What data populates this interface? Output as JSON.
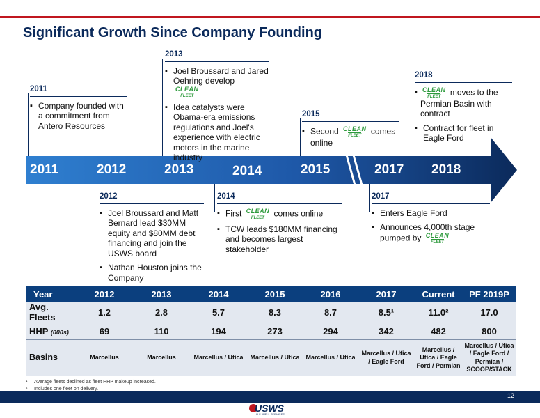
{
  "title": "Significant Growth Since Company Founding",
  "logo_text": {
    "line1": "CLEAN",
    "line2": "FLEET"
  },
  "timeline": {
    "arrow_years": [
      "2011",
      "2012",
      "2013",
      "2014",
      "2015",
      "2017",
      "2018"
    ],
    "above": [
      {
        "year": "2011",
        "bullets": [
          {
            "text": "Company founded with a commitment from Antero Resources"
          }
        ]
      },
      {
        "year": "2013",
        "bullets": [
          {
            "text": "Joel Broussard and Jared Oehring develop"
          },
          {
            "text": "Idea catalysts were Obama-era emissions regulations and Joel's experience with electric motors in the marine industry"
          }
        ]
      },
      {
        "year": "2015",
        "bullets": [
          {
            "pre": "Second",
            "post": "comes online"
          }
        ]
      },
      {
        "year": "2018",
        "bullets": [
          {
            "pre": "",
            "post": "moves to the Permian Basin with contract"
          },
          {
            "text": "Contract for fleet in Eagle Ford"
          }
        ]
      }
    ],
    "below": [
      {
        "year": "2012",
        "bullets": [
          {
            "text": "Joel Broussard and Matt Bernard lead $30MM equity and $80MM debt financing and join the USWS board"
          },
          {
            "text": "Nathan Houston joins the Company"
          }
        ]
      },
      {
        "year": "2014",
        "bullets": [
          {
            "pre": "First",
            "post": "comes online"
          },
          {
            "text": "TCW leads $180MM financing and becomes largest stakeholder"
          }
        ]
      },
      {
        "year": "2017",
        "bullets": [
          {
            "text": "Enters Eagle Ford"
          },
          {
            "pre": "Announces 4,000th stage pumped by",
            "post": ""
          }
        ]
      }
    ]
  },
  "table": {
    "header": [
      "Year",
      "2012",
      "2013",
      "2014",
      "2015",
      "2016",
      "2017",
      "Current",
      "PF 2019P"
    ],
    "fleets": {
      "label": "Avg. Fleets",
      "values": [
        "1.2",
        "2.8",
        "5.7",
        "8.3",
        "8.7",
        "8.5¹",
        "11.0²",
        "17.0"
      ]
    },
    "hhp": {
      "label": "HHP",
      "unit": "(000s)",
      "values": [
        "69",
        "110",
        "194",
        "273",
        "294",
        "342",
        "482",
        "800"
      ]
    },
    "basins": {
      "label": "Basins",
      "values": [
        "Marcellus",
        "Marcellus",
        "Marcellus / Utica",
        "Marcellus / Utica",
        "Marcellus / Utica",
        "Marcellus / Utica / Eagle Ford",
        "Marcellus / Utica / Eagle Ford / Permian",
        "Marcellus / Utica / Eagle Ford / Permian / SCOOP/STACK"
      ]
    }
  },
  "footnotes": [
    {
      "mark": "¹",
      "text": "Average fleets declined as fleet HHP makeup increased."
    },
    {
      "mark": "²",
      "text": "Includes one fleet on delivery."
    }
  ],
  "page_number": "12",
  "brand": {
    "name": "USWS",
    "tagline": "U.S. WELL SERVICES"
  },
  "colors": {
    "navy": "#0b2a5b",
    "table_header": "#0b3f7e",
    "accent_red": "#c0161f",
    "clean_fleet_green": "#2d9a3c",
    "row_fill": "#e3e8f0"
  }
}
